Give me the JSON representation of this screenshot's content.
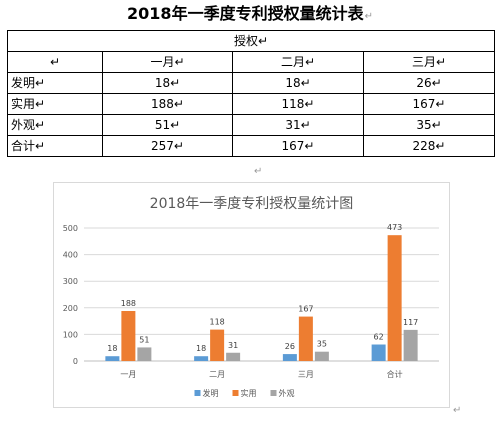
{
  "document": {
    "title": "2018年一季度专利授权量统计表",
    "para_mark": "↵"
  },
  "table": {
    "group_header": "授权",
    "corner": "↵",
    "columns": [
      "一月",
      "二月",
      "三月"
    ],
    "rows": [
      {
        "label": "发明",
        "values": [
          "18",
          "18",
          "26"
        ]
      },
      {
        "label": "实用",
        "values": [
          "188",
          "118",
          "167"
        ]
      },
      {
        "label": "外观",
        "values": [
          "51",
          "31",
          "35"
        ]
      },
      {
        "label": "合计",
        "values": [
          "257",
          "167",
          "228"
        ]
      }
    ]
  },
  "chart_data": {
    "type": "bar",
    "title": "2018年一季度专利授权量统计图",
    "categories": [
      "一月",
      "二月",
      "三月",
      "合计"
    ],
    "series": [
      {
        "name": "发明",
        "color": "#5b9bd5",
        "values": [
          18,
          18,
          26,
          62
        ]
      },
      {
        "name": "实用",
        "color": "#ed7d31",
        "values": [
          188,
          118,
          167,
          473
        ]
      },
      {
        "name": "外观",
        "color": "#a5a5a5",
        "values": [
          51,
          31,
          35,
          117
        ]
      }
    ],
    "ylim": [
      0,
      500
    ],
    "yticks": [
      0,
      100,
      200,
      300,
      400,
      500
    ],
    "grid": true,
    "data_labels": true,
    "legend": "bottom"
  }
}
